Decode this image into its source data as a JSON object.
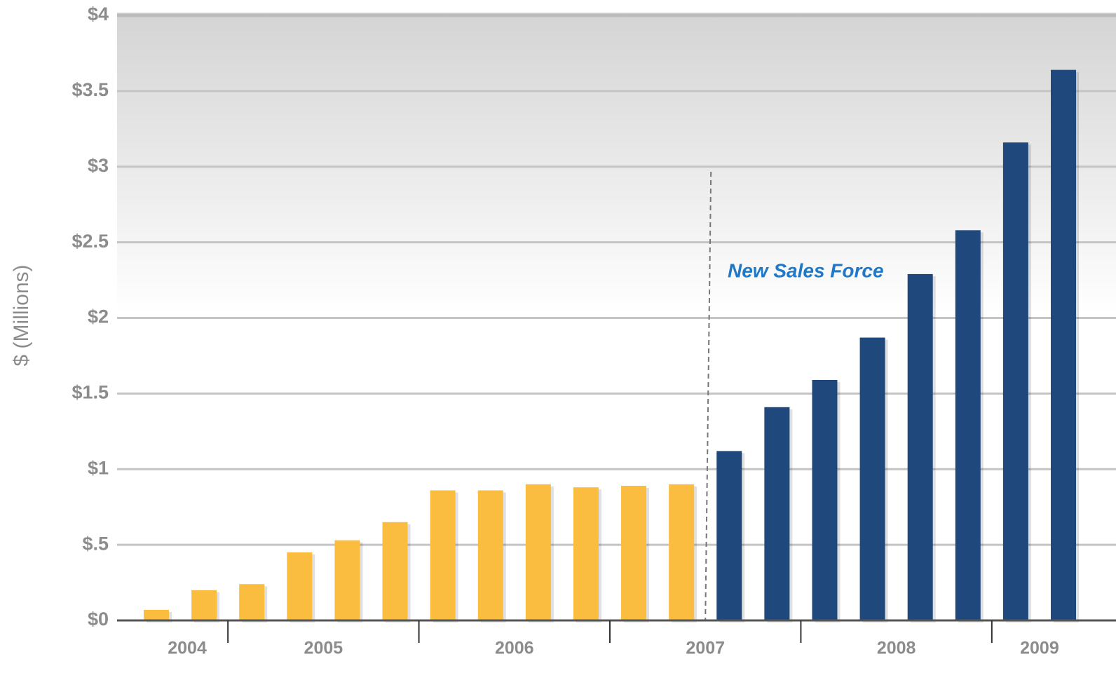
{
  "chart_data": {
    "type": "bar",
    "y_axis_label": "$ (Millions)",
    "annotation": "New Sales Force",
    "groups": [
      "2004",
      "2005",
      "2006",
      "2007",
      "2008",
      "2009"
    ],
    "values": [
      0.07,
      0.2,
      0.24,
      0.45,
      0.53,
      0.65,
      0.86,
      0.86,
      0.9,
      0.88,
      0.89,
      0.9,
      1.12,
      1.41,
      1.59,
      1.87,
      2.29,
      2.58,
      3.16,
      3.64
    ],
    "color": "#fbbd3f",
    "highlight_color": "#1f497d",
    "ylim": [
      0,
      4
    ],
    "yticks": [
      {
        "value": 0,
        "label": "$0"
      },
      {
        "value": 0.5,
        "label": "$.5"
      },
      {
        "value": 1,
        "label": "$1"
      },
      {
        "value": 1.5,
        "label": "$1.5"
      },
      {
        "value": 2,
        "label": "$2"
      },
      {
        "value": 2.5,
        "label": "$2.5"
      },
      {
        "value": 3,
        "label": "$3"
      },
      {
        "value": 3.5,
        "label": "$3.5"
      },
      {
        "value": 4,
        "label": "$4"
      }
    ],
    "grid": true
  }
}
